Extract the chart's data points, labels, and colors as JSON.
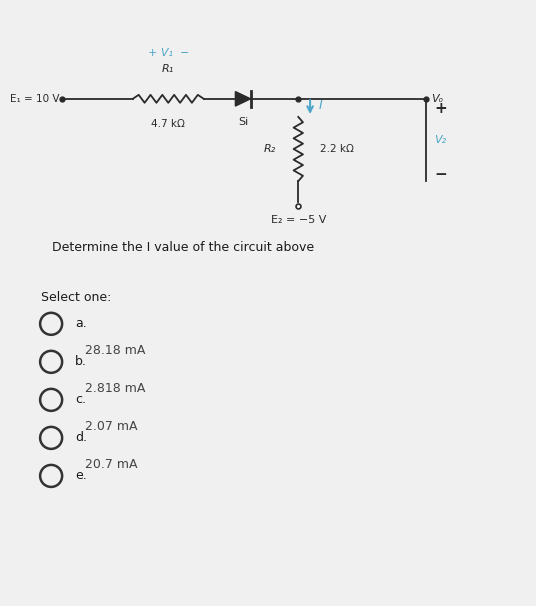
{
  "bg_top_color": "#c0392b",
  "bg_main_color": "#dce8f0",
  "bg_bottom_color": "#f0f0f0",
  "circuit_text": {
    "plus_v1_minus": "+ V₁  −",
    "R1_label": "R₁",
    "E1_label": "E₁ = 10 V",
    "R1_val": "4.7 kΩ",
    "Si_label": "Si",
    "I_label": "I",
    "R2_label": "R₂",
    "R2_val": "2.2 kΩ",
    "Vo_label": "Vₒ",
    "V2_label": "V₂",
    "E2_label": "E₂ = −5 V",
    "plus": "+",
    "minus": "−"
  },
  "question": "Determine the I value of the circuit above",
  "select_one": "Select one:",
  "choices": [
    {
      "label": "a.",
      "value": "28.18 mA"
    },
    {
      "label": "b.",
      "value": "2.818 mA"
    },
    {
      "label": "c.",
      "value": "2.07 mA"
    },
    {
      "label": "d.",
      "value": "20.7 mA"
    },
    {
      "label": "e.",
      "value": ""
    }
  ],
  "circuit_color": "#2a2a2a",
  "blue_color": "#4da6c8"
}
